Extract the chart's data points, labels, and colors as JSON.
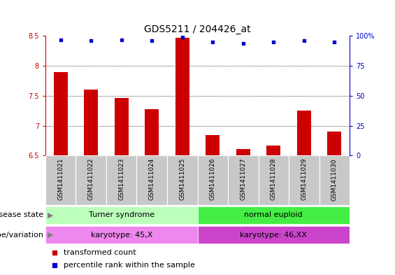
{
  "title": "GDS5211 / 204426_at",
  "samples": [
    "GSM1411021",
    "GSM1411022",
    "GSM1411023",
    "GSM1411024",
    "GSM1411025",
    "GSM1411026",
    "GSM1411027",
    "GSM1411028",
    "GSM1411029",
    "GSM1411030"
  ],
  "bar_values": [
    7.9,
    7.6,
    7.47,
    7.28,
    8.47,
    6.85,
    6.61,
    6.67,
    7.25,
    6.9
  ],
  "percentile_values": [
    97,
    96,
    97,
    96,
    99,
    95,
    94,
    95,
    96,
    95
  ],
  "ylim": [
    6.5,
    8.5
  ],
  "yticks": [
    6.5,
    7.0,
    7.5,
    8.0,
    8.5
  ],
  "ytick_labels": [
    "6.5",
    "7",
    "7.5",
    "8",
    "8.5"
  ],
  "right_yticks": [
    0,
    25,
    50,
    75,
    100
  ],
  "right_ylim": [
    0,
    100
  ],
  "bar_color": "#cc0000",
  "dot_color": "#0000cc",
  "bar_width": 0.45,
  "group1_label": "Turner syndrome",
  "group2_label": "normal euploid",
  "group1_color": "#bbffbb",
  "group2_color": "#44ee44",
  "karyotype1_label": "karyotype: 45,X",
  "karyotype2_label": "karyotype: 46,XX",
  "karyotype1_color": "#ee88ee",
  "karyotype2_color": "#cc44cc",
  "disease_state_label": "disease state",
  "genotype_label": "genotype/variation",
  "legend_bar_label": "transformed count",
  "legend_dot_label": "percentile rank within the sample",
  "grid_color": "#000000",
  "background_color": "#ffffff",
  "xtick_panel_color": "#c8c8c8",
  "title_fontsize": 10,
  "tick_fontsize": 7,
  "label_fontsize": 8,
  "sample_fontsize": 6.5
}
